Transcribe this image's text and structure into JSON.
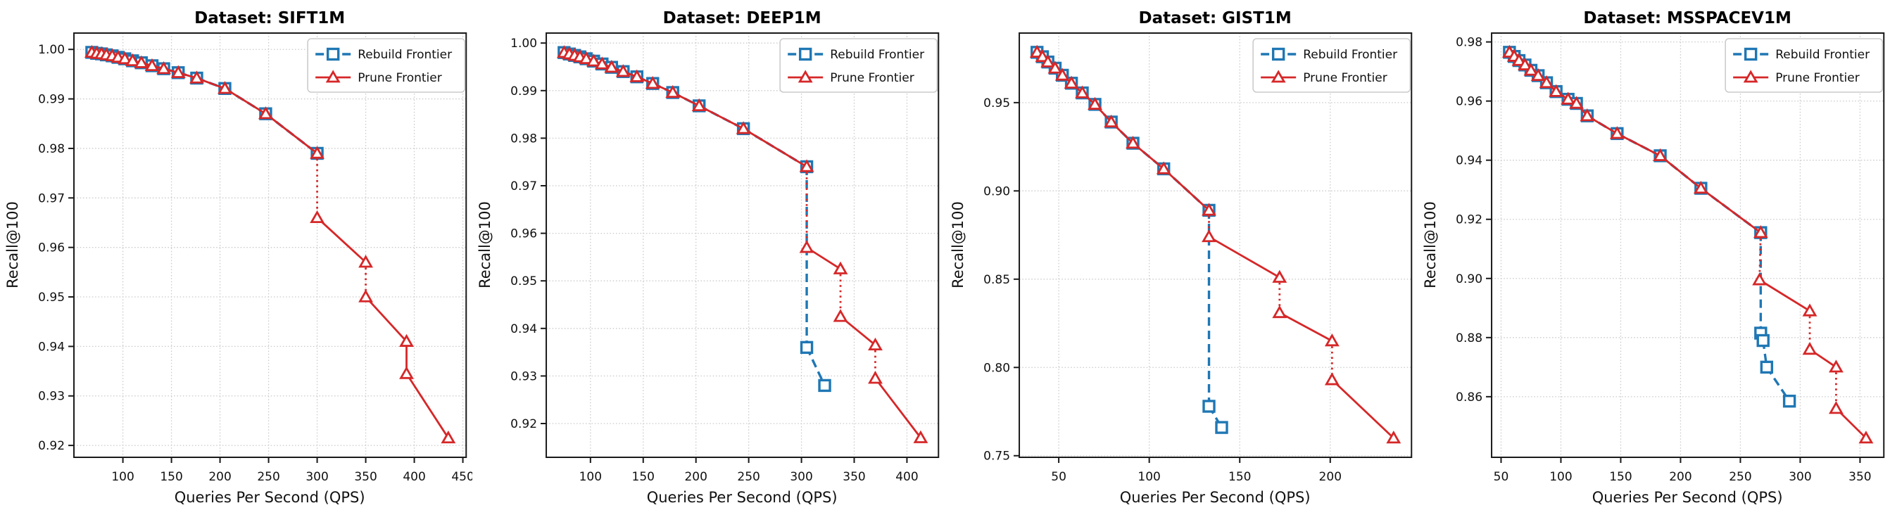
{
  "figure": {
    "background": "#ffffff",
    "xlabel": "Queries Per Second (QPS)",
    "ylabel": "Recall@100",
    "legend": [
      "Rebuild Frontier",
      "Prune Frontier"
    ],
    "colors": {
      "rebuild": "#1f77b4",
      "prune": "#d62728",
      "grid": "#cccccc",
      "spine": "#1a1a1a"
    }
  },
  "chart_data": [
    {
      "type": "line",
      "title": "Dataset: SIFT1M",
      "xlabel": "Queries Per Second (QPS)",
      "ylabel": "Recall@100",
      "xlim": [
        49.6,
        453.4
      ],
      "ylim": [
        0.9176,
        1.0033
      ],
      "xticks": [
        100,
        150,
        200,
        250,
        300,
        350,
        400,
        450
      ],
      "yticks": [
        0.92,
        0.93,
        0.94,
        0.95,
        0.96,
        0.97,
        0.98,
        0.99,
        1.0
      ],
      "grid": true,
      "legend_position": "upper right",
      "series": [
        {
          "name": "Rebuild Frontier",
          "color": "#1f77b4",
          "linestyle": "dashed",
          "marker": "square",
          "x": [
            68,
            73,
            78,
            83,
            89,
            95,
            102,
            110,
            119,
            130,
            142,
            157,
            176,
            205,
            247,
            300
          ],
          "y": [
            0.9994,
            0.9992,
            0.9991,
            0.9989,
            0.9987,
            0.9984,
            0.9981,
            0.9977,
            0.9973,
            0.9967,
            0.9961,
            0.9953,
            0.9942,
            0.9921,
            0.987,
            0.979
          ]
        },
        {
          "name": "Prune Frontier",
          "color": "#d62728",
          "linestyle": "solid-with-dotted-drops",
          "marker": "triangle",
          "x": [
            68,
            73,
            78,
            83,
            89,
            95,
            102,
            110,
            119,
            130,
            142,
            157,
            176,
            205,
            247,
            300,
            300,
            350,
            350,
            392,
            392,
            435
          ],
          "y": [
            0.9994,
            0.9992,
            0.9991,
            0.9989,
            0.9987,
            0.9984,
            0.9981,
            0.9977,
            0.9973,
            0.9967,
            0.9961,
            0.9953,
            0.9942,
            0.9921,
            0.987,
            0.979,
            0.966,
            0.957,
            0.95,
            0.941,
            0.9345,
            0.9215
          ]
        }
      ]
    },
    {
      "type": "line",
      "title": "Dataset: DEEP1M",
      "xlabel": "Queries Per Second (QPS)",
      "ylabel": "Recall@100",
      "xlim": [
        58.1,
        429.9
      ],
      "ylim": [
        0.9129,
        1.0021
      ],
      "xticks": [
        100,
        150,
        200,
        250,
        300,
        350,
        400
      ],
      "yticks": [
        0.92,
        0.93,
        0.94,
        0.95,
        0.96,
        0.97,
        0.98,
        0.99,
        1.0
      ],
      "grid": true,
      "legend_position": "upper right",
      "series": [
        {
          "name": "Rebuild Frontier",
          "color": "#1f77b4",
          "linestyle": "dashed",
          "marker": "square",
          "x": [
            75,
            80,
            85,
            90,
            96,
            103,
            111,
            120,
            131,
            144,
            159,
            178,
            203,
            245,
            305,
            305,
            322
          ],
          "y": [
            0.998,
            0.9977,
            0.9974,
            0.9971,
            0.9967,
            0.9962,
            0.9956,
            0.9949,
            0.994,
            0.9929,
            0.9915,
            0.9896,
            0.9868,
            0.982,
            0.974,
            0.936,
            0.928
          ]
        },
        {
          "name": "Prune Frontier",
          "color": "#d62728",
          "linestyle": "solid-with-dotted-drops",
          "marker": "triangle",
          "x": [
            75,
            80,
            85,
            90,
            96,
            103,
            111,
            120,
            131,
            144,
            159,
            178,
            203,
            245,
            305,
            305,
            337,
            337,
            370,
            370,
            413
          ],
          "y": [
            0.998,
            0.9977,
            0.9974,
            0.9971,
            0.9967,
            0.9962,
            0.9956,
            0.9949,
            0.994,
            0.9929,
            0.9915,
            0.9896,
            0.9868,
            0.982,
            0.974,
            0.957,
            0.9525,
            0.9425,
            0.9365,
            0.9295,
            0.917
          ]
        }
      ]
    },
    {
      "type": "line",
      "title": "Dataset: GIST1M",
      "xlabel": "Queries Per Second (QPS)",
      "ylabel": "Recall@100",
      "xlim": [
        28.2,
        244.9
      ],
      "ylim": [
        0.7491,
        0.9894
      ],
      "xticks": [
        50,
        100,
        150,
        200
      ],
      "yticks": [
        0.75,
        0.8,
        0.85,
        0.9,
        0.95
      ],
      "grid": true,
      "legend_position": "upper right",
      "series": [
        {
          "name": "Rebuild Frontier",
          "color": "#1f77b4",
          "linestyle": "dashed",
          "marker": "square",
          "x": [
            38,
            41,
            44,
            48,
            52,
            57,
            63,
            70,
            79,
            91,
            108,
            133,
            133,
            140
          ],
          "y": [
            0.9785,
            0.976,
            0.973,
            0.9695,
            0.9655,
            0.961,
            0.9555,
            0.949,
            0.939,
            0.927,
            0.9125,
            0.889,
            0.778,
            0.766
          ]
        },
        {
          "name": "Prune Frontier",
          "color": "#d62728",
          "linestyle": "solid-with-dotted-drops",
          "marker": "triangle",
          "x": [
            38,
            41,
            44,
            48,
            52,
            57,
            63,
            70,
            79,
            91,
            108,
            133,
            133,
            172,
            172,
            201,
            201,
            235
          ],
          "y": [
            0.9785,
            0.976,
            0.973,
            0.9695,
            0.9655,
            0.961,
            0.9555,
            0.949,
            0.939,
            0.927,
            0.9125,
            0.889,
            0.874,
            0.851,
            0.831,
            0.815,
            0.793,
            0.76
          ]
        }
      ]
    },
    {
      "type": "line",
      "title": "Dataset: MSSPACEV1M",
      "xlabel": "Queries Per Second (QPS)",
      "ylabel": "Recall@100",
      "xlim": [
        42.1,
        369.9
      ],
      "ylim": [
        0.8395,
        0.983
      ],
      "xticks": [
        50,
        100,
        150,
        200,
        250,
        300,
        350
      ],
      "yticks": [
        0.86,
        0.88,
        0.9,
        0.92,
        0.94,
        0.96,
        0.98
      ],
      "grid": true,
      "legend_position": "upper right",
      "series": [
        {
          "name": "Rebuild Frontier",
          "color": "#1f77b4",
          "linestyle": "dashed",
          "marker": "square",
          "x": [
            57,
            61,
            65,
            70,
            75,
            81,
            88,
            96,
            106,
            113,
            122,
            147,
            183,
            217,
            267,
            267,
            269,
            272,
            291
          ],
          "y": [
            0.9765,
            0.9751,
            0.9737,
            0.9722,
            0.9704,
            0.9686,
            0.9662,
            0.9632,
            0.9606,
            0.9592,
            0.955,
            0.949,
            0.9415,
            0.9305,
            0.9155,
            0.8815,
            0.879,
            0.87,
            0.8585
          ]
        },
        {
          "name": "Prune Frontier",
          "color": "#d62728",
          "linestyle": "solid-with-dotted-drops",
          "marker": "triangle",
          "x": [
            57,
            61,
            65,
            70,
            75,
            81,
            88,
            96,
            106,
            113,
            122,
            147,
            183,
            217,
            267,
            266,
            308,
            308,
            330,
            330,
            355
          ],
          "y": [
            0.9765,
            0.9751,
            0.9737,
            0.9722,
            0.9704,
            0.9686,
            0.9662,
            0.9632,
            0.9606,
            0.9592,
            0.955,
            0.949,
            0.9415,
            0.9305,
            0.9155,
            0.8995,
            0.889,
            0.876,
            0.87,
            0.856,
            0.846
          ]
        }
      ]
    }
  ]
}
